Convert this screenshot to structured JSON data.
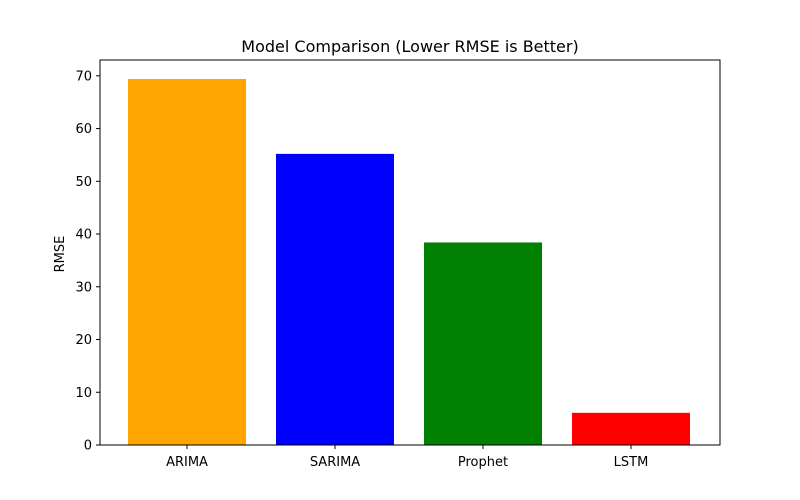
{
  "chart_data": {
    "type": "bar",
    "title": "Model Comparison (Lower RMSE is Better)",
    "xlabel": "",
    "ylabel": "RMSE",
    "categories": [
      "ARIMA",
      "SARIMA",
      "Prophet",
      "LSTM"
    ],
    "values": [
      69.4,
      55.2,
      38.4,
      6.1
    ],
    "colors": [
      "#FFA500",
      "#0000FF",
      "#008000",
      "#FF0000"
    ],
    "ylim": [
      0,
      73
    ],
    "yticks": [
      0,
      10,
      20,
      30,
      40,
      50,
      60,
      70
    ],
    "grid": false,
    "legend": "none"
  }
}
